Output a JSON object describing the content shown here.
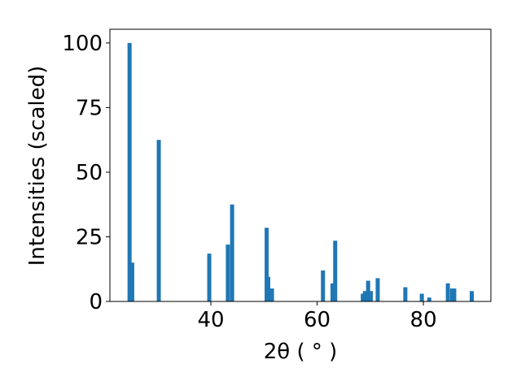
{
  "chart_data": {
    "type": "bar",
    "xlabel": "2θ ( ° )",
    "ylabel": "Intensities (scaled)",
    "color": "#1f77b4",
    "x": [
      24.7,
      25.2,
      30.2,
      39.7,
      43.2,
      44.0,
      50.5,
      50.8,
      51.5,
      61.1,
      62.9,
      63.4,
      68.6,
      69.0,
      69.6,
      70.1,
      71.4,
      76.6,
      79.7,
      81.1,
      84.6,
      85.4,
      85.8,
      89.1
    ],
    "values": [
      100,
      15,
      62.5,
      18.5,
      22,
      37.5,
      28.5,
      9.5,
      5,
      12,
      7,
      23.5,
      3,
      4,
      8,
      4,
      9,
      5.5,
      3,
      1.5,
      7,
      5,
      5,
      4
    ],
    "xlim": [
      21.0,
      92.7
    ],
    "ylim": [
      0,
      105.3
    ],
    "xticks": [
      40,
      60,
      80
    ],
    "yticks": [
      0,
      25,
      50,
      75,
      100
    ]
  }
}
